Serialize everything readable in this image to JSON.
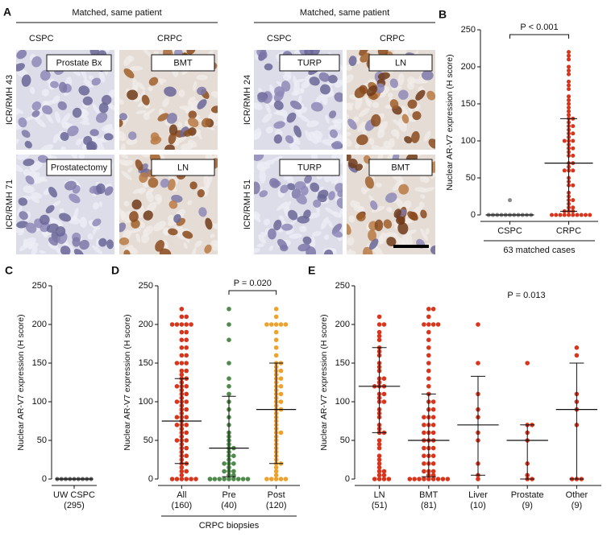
{
  "image_panel": {
    "panel": "A",
    "groups": [
      {
        "header": "Matched, same patient",
        "columns": [
          "CSPC",
          "CRPC"
        ],
        "rows": [
          {
            "patient": "ICR/RMH 43",
            "tissues": [
              "Prostate Bx",
              "BMT"
            ]
          },
          {
            "patient": "ICR/RMH 71",
            "tissues": [
              "Prostatectomy",
              "LN"
            ]
          }
        ]
      },
      {
        "header": "Matched, same patient",
        "columns": [
          "CSPC",
          "CRPC"
        ],
        "rows": [
          {
            "patient": "ICR/RMH 24",
            "tissues": [
              "TURP",
              "LN"
            ]
          },
          {
            "patient": "ICR/RMH 51",
            "tissues": [
              "TURP",
              "BMT"
            ]
          }
        ]
      }
    ]
  },
  "chart_data": [
    {
      "type": "strip",
      "panel": "B",
      "y_label": "Nuclear AR-V7 expression (H score)",
      "ylim": [
        0,
        250
      ],
      "yticks": [
        0,
        50,
        100,
        150,
        200,
        250
      ],
      "categories": [
        "CSPC",
        "CRPC"
      ],
      "colors": [
        "#888888",
        "#d9341c"
      ],
      "values": [
        [
          0,
          0,
          0,
          0,
          0,
          0,
          0,
          0,
          0,
          0,
          0,
          0,
          0,
          0,
          0,
          0,
          0,
          0,
          0,
          0,
          20
        ],
        [
          0,
          0,
          0,
          0,
          0,
          0,
          0,
          0,
          5,
          5,
          10,
          20,
          30,
          40,
          50,
          60,
          60,
          70,
          70,
          80,
          90,
          90,
          100,
          100,
          110,
          110,
          120,
          130,
          130,
          140,
          150,
          160,
          170,
          180,
          190,
          200,
          210,
          220,
          5,
          15,
          25,
          45,
          65,
          85,
          95,
          105,
          115,
          125,
          135,
          145,
          155,
          175,
          195,
          215,
          60,
          80,
          100,
          120,
          0,
          0,
          10,
          20,
          40
        ]
      ],
      "medians": [
        0,
        70
      ],
      "iqrs": [
        [
          0,
          0
        ],
        [
          5,
          130
        ]
      ],
      "annotation": {
        "text": "P < 0.001",
        "between": [
          "CSPC",
          "CRPC"
        ]
      },
      "group_label": "63 matched cases"
    },
    {
      "type": "strip",
      "panel": "C",
      "y_label": "Nuclear AR-V7 expression (H score)",
      "ylim": [
        0,
        250
      ],
      "yticks": [
        0,
        50,
        100,
        150,
        200,
        250
      ],
      "categories": [
        "UW CSPC"
      ],
      "counts": [
        "(295)"
      ],
      "colors": [
        "#666666"
      ],
      "values": [
        [
          0,
          0,
          0,
          0,
          0,
          0,
          0,
          0,
          0,
          0,
          0,
          0,
          0,
          0,
          0,
          0,
          0,
          0,
          0,
          0
        ]
      ],
      "medians": [
        0
      ],
      "iqrs": [
        [
          0,
          0
        ]
      ]
    },
    {
      "type": "strip",
      "panel": "D",
      "y_label": "Nuclear AR-V7 expression (H score)",
      "ylim": [
        0,
        250
      ],
      "yticks": [
        0,
        50,
        100,
        150,
        200,
        250
      ],
      "categories": [
        "All",
        "Pre",
        "Post"
      ],
      "counts": [
        "(160)",
        "(40)",
        "(120)"
      ],
      "colors": [
        "#d9341c",
        "#4e8b4a",
        "#eea22e"
      ],
      "values": [
        [
          0,
          0,
          0,
          0,
          0,
          0,
          10,
          10,
          20,
          20,
          30,
          30,
          40,
          40,
          50,
          50,
          50,
          60,
          60,
          70,
          70,
          70,
          80,
          80,
          80,
          90,
          90,
          100,
          100,
          100,
          110,
          110,
          120,
          120,
          120,
          130,
          130,
          140,
          140,
          150,
          150,
          150,
          160,
          160,
          170,
          170,
          180,
          180,
          190,
          190,
          200,
          200,
          200,
          200,
          200,
          210,
          210,
          220,
          5,
          15,
          25,
          35,
          45,
          55,
          65,
          75,
          85,
          95,
          105,
          115,
          125,
          135
        ],
        [
          0,
          0,
          0,
          0,
          0,
          0,
          0,
          0,
          0,
          10,
          10,
          20,
          20,
          30,
          30,
          40,
          40,
          50,
          60,
          70,
          80,
          90,
          100,
          110,
          120,
          130,
          150,
          180,
          200,
          220,
          5,
          15,
          25,
          35,
          45,
          55,
          5,
          0,
          10,
          20
        ],
        [
          0,
          0,
          0,
          0,
          0,
          10,
          20,
          20,
          30,
          40,
          50,
          60,
          60,
          70,
          80,
          90,
          90,
          100,
          100,
          110,
          110,
          120,
          120,
          130,
          130,
          140,
          140,
          150,
          150,
          160,
          170,
          180,
          190,
          200,
          200,
          200,
          200,
          200,
          210,
          220,
          5,
          15,
          25,
          35,
          45,
          55,
          65,
          75,
          85,
          95,
          105,
          115,
          125,
          135,
          145
        ]
      ],
      "medians": [
        75,
        40,
        90
      ],
      "iqrs": [
        [
          20,
          130
        ],
        [
          3,
          107
        ],
        [
          20,
          150
        ]
      ],
      "annotation": {
        "text": "P = 0.020",
        "between": [
          "Pre",
          "Post"
        ]
      },
      "group_label": "CRPC biopsies"
    },
    {
      "type": "strip",
      "panel": "E",
      "y_label": "Nuclear AR-V7 expression (H score)",
      "ylim": [
        0,
        250
      ],
      "yticks": [
        0,
        50,
        100,
        150,
        200,
        250
      ],
      "categories": [
        "LN",
        "BMT",
        "Liver",
        "Prostate",
        "Other"
      ],
      "counts": [
        "(51)",
        "(81)",
        "(10)",
        "(9)",
        "(9)"
      ],
      "colors": [
        "#d9341c",
        "#d9341c",
        "#d9341c",
        "#d9341c",
        "#d9341c"
      ],
      "values": [
        [
          0,
          0,
          0,
          5,
          10,
          20,
          30,
          40,
          50,
          60,
          70,
          80,
          90,
          100,
          100,
          110,
          110,
          120,
          120,
          130,
          130,
          140,
          150,
          160,
          170,
          180,
          190,
          200,
          210,
          5,
          15,
          25,
          45,
          65,
          85,
          105,
          125,
          145,
          165,
          185,
          0,
          10,
          60,
          120,
          200
        ],
        [
          0,
          0,
          0,
          0,
          0,
          0,
          0,
          0,
          5,
          5,
          10,
          10,
          20,
          20,
          30,
          30,
          40,
          40,
          50,
          50,
          60,
          60,
          70,
          70,
          80,
          80,
          90,
          100,
          100,
          110,
          120,
          130,
          140,
          150,
          160,
          170,
          180,
          190,
          200,
          200,
          200,
          200,
          210,
          220,
          220,
          0,
          10,
          20,
          30,
          40,
          50,
          60,
          70,
          80,
          90
        ],
        [
          0,
          5,
          20,
          50,
          80,
          90,
          110,
          150,
          200,
          60
        ],
        [
          0,
          0,
          5,
          20,
          50,
          60,
          70,
          70,
          150
        ],
        [
          0,
          0,
          0,
          70,
          90,
          100,
          160,
          170,
          110
        ]
      ],
      "medians": [
        120,
        50,
        70,
        50,
        90
      ],
      "iqrs": [
        [
          60,
          170
        ],
        [
          3,
          110
        ],
        [
          5,
          133
        ],
        [
          0,
          70
        ],
        [
          0,
          150
        ]
      ],
      "annotation": {
        "text": "P = 0.013"
      }
    }
  ]
}
